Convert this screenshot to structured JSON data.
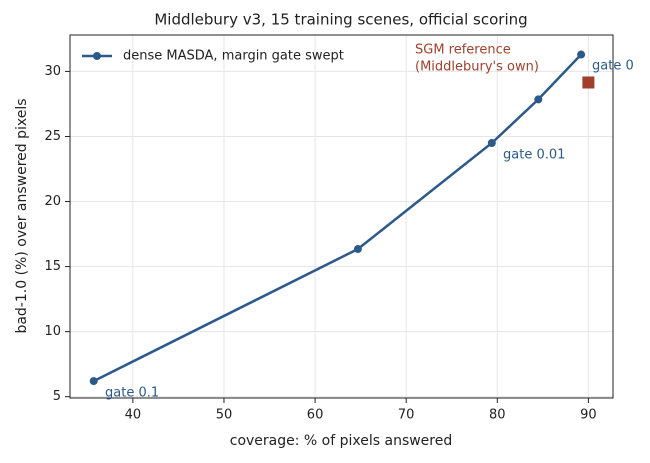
{
  "chart_data": {
    "type": "line",
    "title": "Middlebury v3, 15 training scenes, official scoring",
    "x_label": "coverage: % of pixels answered",
    "y_label": "bad-1.0 (%) over answered pixels",
    "series": [
      {
        "name": "dense MASDA, margin gate swept",
        "color": "#2b5a8a",
        "x": [
          35.7,
          64.7,
          79.4,
          84.5,
          89.2
        ],
        "values": [
          6.2,
          16.35,
          24.5,
          27.85,
          31.3
        ]
      }
    ],
    "reference": {
      "x": 90,
      "value": 29.15,
      "color": "#a23f2a"
    },
    "annotations": [
      {
        "lines": [
          "gate 0.1"
        ],
        "color": "#2b5a8a"
      },
      {
        "lines": [
          "gate 0.01"
        ],
        "color": "#2b5a8a"
      },
      {
        "lines": [
          "gate 0"
        ],
        "color": "#2b5a8a"
      },
      {
        "lines": [
          "SGM reference",
          "(Middlebury's own)"
        ],
        "color": "#a23f2a"
      }
    ],
    "xlim": [
      33.1,
      92.7
    ],
    "xticks": [
      40,
      50,
      60,
      70,
      80,
      90
    ],
    "ylim": [
      4.9,
      32.8
    ],
    "yticks": [
      5,
      10,
      15,
      20,
      25,
      30
    ],
    "grid": true,
    "legend": "upper left"
  }
}
